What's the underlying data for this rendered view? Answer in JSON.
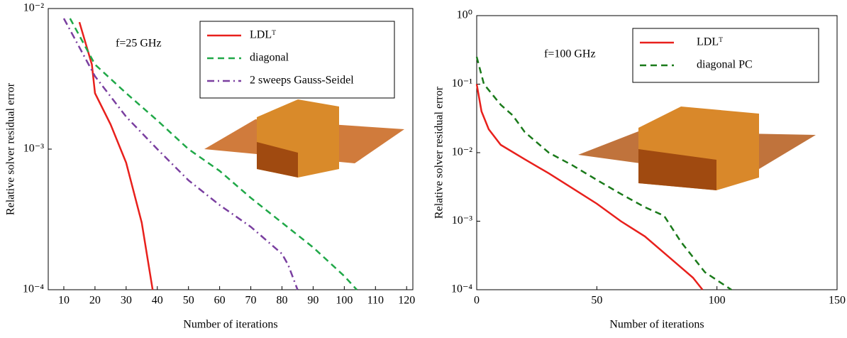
{
  "chart_data": [
    {
      "type": "line",
      "xlabel": "Number of iterations",
      "ylabel": "Relative solver residual error",
      "annotation": "f=25 GHz",
      "xlim": [
        5,
        122
      ],
      "xticks": [
        10,
        20,
        30,
        40,
        50,
        60,
        70,
        80,
        90,
        100,
        110,
        120
      ],
      "ylim": [
        0.0001,
        0.01
      ],
      "log_y": true,
      "yticks": [
        {
          "value": 0.0001,
          "label": "10⁻⁴"
        },
        {
          "value": 0.001,
          "label": "10⁻³"
        },
        {
          "value": 0.01,
          "label": "10⁻²"
        }
      ],
      "legend": "upper right",
      "series": [
        {
          "name": "LDLᵀ",
          "color": "#e8201c",
          "style": "solid",
          "x": [
            15,
            19,
            20,
            25,
            30,
            35,
            38.5
          ],
          "values": [
            0.008,
            0.004,
            0.0025,
            0.0015,
            0.0008,
            0.0003,
            0.0001
          ]
        },
        {
          "name": "diagonal",
          "color": "#20a848",
          "style": "dash",
          "x": [
            12,
            20,
            30,
            40,
            50,
            60,
            70,
            80,
            90,
            100,
            104
          ],
          "values": [
            0.0085,
            0.004,
            0.0025,
            0.0016,
            0.001,
            0.0007,
            0.00045,
            0.0003,
            0.0002,
            0.000125,
            0.0001
          ]
        },
        {
          "name": "2 sweeps Gauss-Seidel",
          "color": "#7a3fa0",
          "style": "dashdot",
          "x": [
            10,
            20,
            30,
            40,
            50,
            60,
            70,
            80,
            82,
            85
          ],
          "values": [
            0.0085,
            0.0033,
            0.0017,
            0.001,
            0.0006,
            0.0004,
            0.00028,
            0.00018,
            0.00015,
            0.0001
          ]
        }
      ]
    },
    {
      "type": "line",
      "xlabel": "Number of iterations",
      "ylabel": "Relative solver residual error",
      "annotation": "f=100 GHz",
      "xlim": [
        0,
        150
      ],
      "xticks": [
        0,
        50,
        100,
        150
      ],
      "ylim": [
        0.0001,
        1
      ],
      "log_y": true,
      "yticks": [
        {
          "value": 0.0001,
          "label": "10⁻⁴"
        },
        {
          "value": 0.001,
          "label": "10⁻³"
        },
        {
          "value": 0.01,
          "label": "10⁻²"
        },
        {
          "value": 0.1,
          "label": "10⁻¹"
        },
        {
          "value": 1,
          "label": "10⁰"
        }
      ],
      "legend": "upper right",
      "series": [
        {
          "name": "LDLᵀ",
          "color": "#e8201c",
          "style": "solid",
          "x": [
            0,
            2,
            5,
            10,
            20,
            30,
            40,
            50,
            60,
            70,
            80,
            90,
            94
          ],
          "values": [
            0.1,
            0.04,
            0.022,
            0.013,
            0.008,
            0.005,
            0.003,
            0.0018,
            0.001,
            0.0006,
            0.0003,
            0.00015,
            0.0001
          ]
        },
        {
          "name": "diagonal PC",
          "color": "#1a7a1a",
          "style": "dash",
          "x": [
            0,
            3,
            10,
            15,
            20,
            30,
            40,
            50,
            60,
            70,
            78,
            85,
            95,
            106
          ],
          "values": [
            0.25,
            0.1,
            0.05,
            0.035,
            0.02,
            0.01,
            0.0065,
            0.004,
            0.0025,
            0.0016,
            0.0012,
            0.0005,
            0.00018,
            0.0001
          ]
        }
      ]
    }
  ]
}
